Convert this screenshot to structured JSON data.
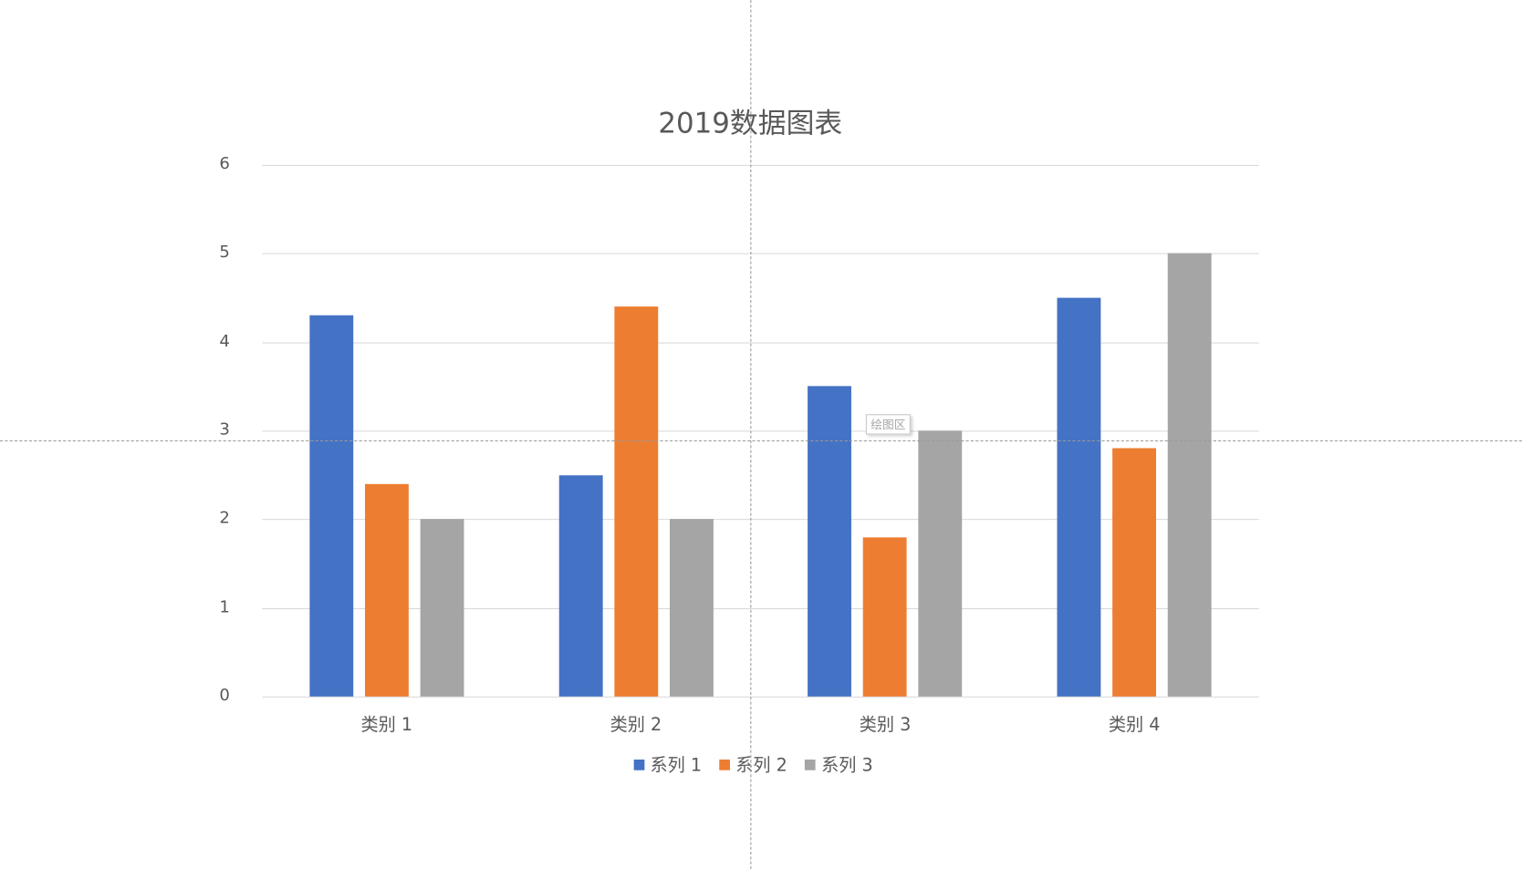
{
  "chart_data": {
    "type": "bar",
    "title": "2019数据图表",
    "categories": [
      "类别 1",
      "类别 2",
      "类别 3",
      "类别 4"
    ],
    "series": [
      {
        "name": "系列 1",
        "color": "#4472c4",
        "values": [
          4.3,
          2.5,
          3.5,
          4.5
        ]
      },
      {
        "name": "系列 2",
        "color": "#ed7d31",
        "values": [
          2.4,
          4.4,
          1.8,
          2.8
        ]
      },
      {
        "name": "系列 3",
        "color": "#a5a5a5",
        "values": [
          2,
          2,
          3,
          5
        ]
      }
    ],
    "xlabel": "",
    "ylabel": "",
    "ylim": [
      0,
      6
    ],
    "yticks": [
      "0",
      "1",
      "2",
      "3",
      "4",
      "5",
      "6"
    ],
    "grid": true,
    "legend_position": "bottom"
  },
  "tooltip": {
    "text": "绘图区"
  }
}
